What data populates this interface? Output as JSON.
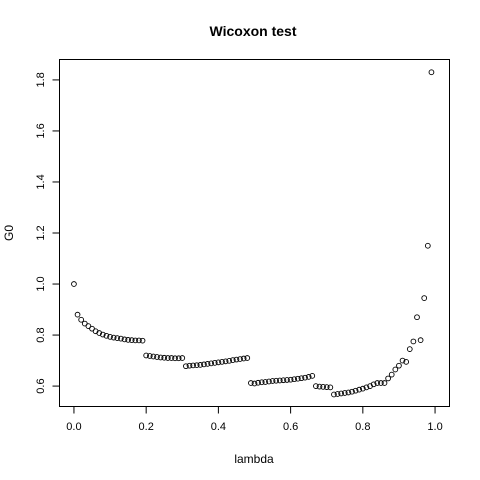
{
  "chart_data": {
    "type": "scatter",
    "title": "Wicoxon test",
    "xlabel": "lambda",
    "ylabel": "G0",
    "xlim": [
      -0.04,
      1.04
    ],
    "ylim": [
      0.52,
      1.88
    ],
    "xticks": [
      0.0,
      0.2,
      0.4,
      0.6,
      0.8,
      1.0
    ],
    "xtick_labels": [
      "0.0",
      "0.2",
      "0.4",
      "0.6",
      "0.8",
      "1.0"
    ],
    "yticks": [
      0.6,
      0.8,
      1.0,
      1.2,
      1.4,
      1.6,
      1.8
    ],
    "ytick_labels": [
      "0.6",
      "0.8",
      "1.0",
      "1.2",
      "1.4",
      "1.6",
      "1.8"
    ],
    "grid": false,
    "highlight_color": "#d9534f",
    "series": [
      {
        "name": "G0",
        "x": [
          0.0,
          0.01,
          0.02,
          0.03,
          0.04,
          0.05,
          0.06,
          0.07,
          0.08,
          0.09,
          0.1,
          0.11,
          0.12,
          0.13,
          0.14,
          0.15,
          0.16,
          0.17,
          0.18,
          0.19,
          0.2,
          0.21,
          0.22,
          0.23,
          0.24,
          0.25,
          0.26,
          0.27,
          0.28,
          0.29,
          0.3,
          0.31,
          0.32,
          0.33,
          0.34,
          0.35,
          0.36,
          0.37,
          0.38,
          0.39,
          0.4,
          0.41,
          0.42,
          0.43,
          0.44,
          0.45,
          0.46,
          0.47,
          0.48,
          0.49,
          0.5,
          0.51,
          0.52,
          0.53,
          0.54,
          0.55,
          0.56,
          0.57,
          0.58,
          0.59,
          0.6,
          0.61,
          0.62,
          0.63,
          0.64,
          0.65,
          0.66,
          0.67,
          0.68,
          0.69,
          0.7,
          0.71,
          0.72,
          0.73,
          0.74,
          0.75,
          0.76,
          0.77,
          0.78,
          0.79,
          0.8,
          0.81,
          0.82,
          0.83,
          0.84,
          0.85,
          0.86,
          0.87,
          0.88,
          0.89,
          0.9,
          0.91,
          0.92,
          0.93,
          0.94,
          0.95,
          0.96,
          0.97,
          0.98,
          0.99
        ],
        "y": [
          1.0,
          0.88,
          0.86,
          0.845,
          0.835,
          0.825,
          0.815,
          0.808,
          0.802,
          0.797,
          0.793,
          0.79,
          0.788,
          0.786,
          0.783,
          0.781,
          0.78,
          0.779,
          0.779,
          0.778,
          0.72,
          0.718,
          0.716,
          0.714,
          0.712,
          0.711,
          0.71,
          0.71,
          0.709,
          0.709,
          0.71,
          0.678,
          0.68,
          0.681,
          0.682,
          0.683,
          0.685,
          0.687,
          0.689,
          0.691,
          0.693,
          0.695,
          0.697,
          0.699,
          0.702,
          0.704,
          0.706,
          0.708,
          0.71,
          0.612,
          0.61,
          0.613,
          0.615,
          0.616,
          0.618,
          0.62,
          0.621,
          0.622,
          0.623,
          0.624,
          0.625,
          0.627,
          0.629,
          0.631,
          0.633,
          0.636,
          0.64,
          0.6,
          0.598,
          0.597,
          0.596,
          0.595,
          0.567,
          0.569,
          0.571,
          0.573,
          0.575,
          0.578,
          0.582,
          0.586,
          0.59,
          0.595,
          0.6,
          0.607,
          0.612,
          0.612,
          0.612,
          0.63,
          0.645,
          0.665,
          0.68,
          0.7,
          0.695,
          0.745,
          0.775,
          0.87,
          0.78,
          0.945,
          1.15,
          1.83
        ],
        "highlight_indices": [
          22
        ]
      }
    ]
  }
}
